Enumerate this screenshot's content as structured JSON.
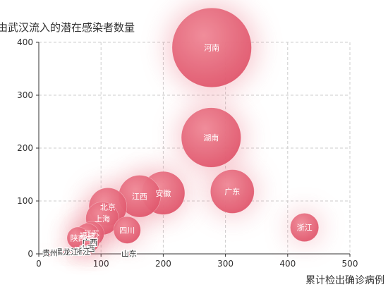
{
  "chart_data": {
    "type": "scatter",
    "title": "",
    "ylabel": "由武汉流入的潜在感染者数量",
    "xlabel": "累计检出确诊病例",
    "xlim": [
      0,
      500
    ],
    "ylim": [
      0,
      400
    ],
    "x_ticks": [
      "0",
      "100",
      "200",
      "300",
      "400",
      "500"
    ],
    "y_ticks": [
      "0",
      "100",
      "200",
      "300",
      "400"
    ],
    "grid": true,
    "bubble_color": "#e8697a",
    "points": [
      {
        "label": "河南",
        "x": 278,
        "y": 390,
        "size": 390
      },
      {
        "label": "湖南",
        "x": 277,
        "y": 220,
        "size": 220
      },
      {
        "label": "广东",
        "x": 311,
        "y": 118,
        "size": 118
      },
      {
        "label": "安徽",
        "x": 200,
        "y": 115,
        "size": 115
      },
      {
        "label": "江西",
        "x": 162,
        "y": 109,
        "size": 109
      },
      {
        "label": "北京",
        "x": 111,
        "y": 89,
        "size": 89
      },
      {
        "label": "上海",
        "x": 102,
        "y": 67,
        "size": 67
      },
      {
        "label": "浙江",
        "x": 427,
        "y": 50,
        "size": 50
      },
      {
        "label": "四川",
        "x": 142,
        "y": 45,
        "size": 45
      },
      {
        "label": "江苏",
        "x": 85,
        "y": 38,
        "size": 38
      },
      {
        "label": "福建",
        "x": 78,
        "y": 35,
        "size": 35
      },
      {
        "label": "陕西",
        "x": 63,
        "y": 30,
        "size": 30
      },
      {
        "label": "广西",
        "x": 82,
        "y": 22,
        "size": 22
      },
      {
        "label": "山西",
        "x": 78,
        "y": 10,
        "size": 10
      },
      {
        "label": "浙江",
        "x": 70,
        "y": 5,
        "size": 5
      },
      {
        "label": "黑龙江",
        "x": 45,
        "y": 4,
        "size": 4
      },
      {
        "label": "贵州",
        "x": 18,
        "y": 2,
        "size": 2
      },
      {
        "label": "山东",
        "x": 145,
        "y": 1,
        "size": 1
      }
    ]
  }
}
